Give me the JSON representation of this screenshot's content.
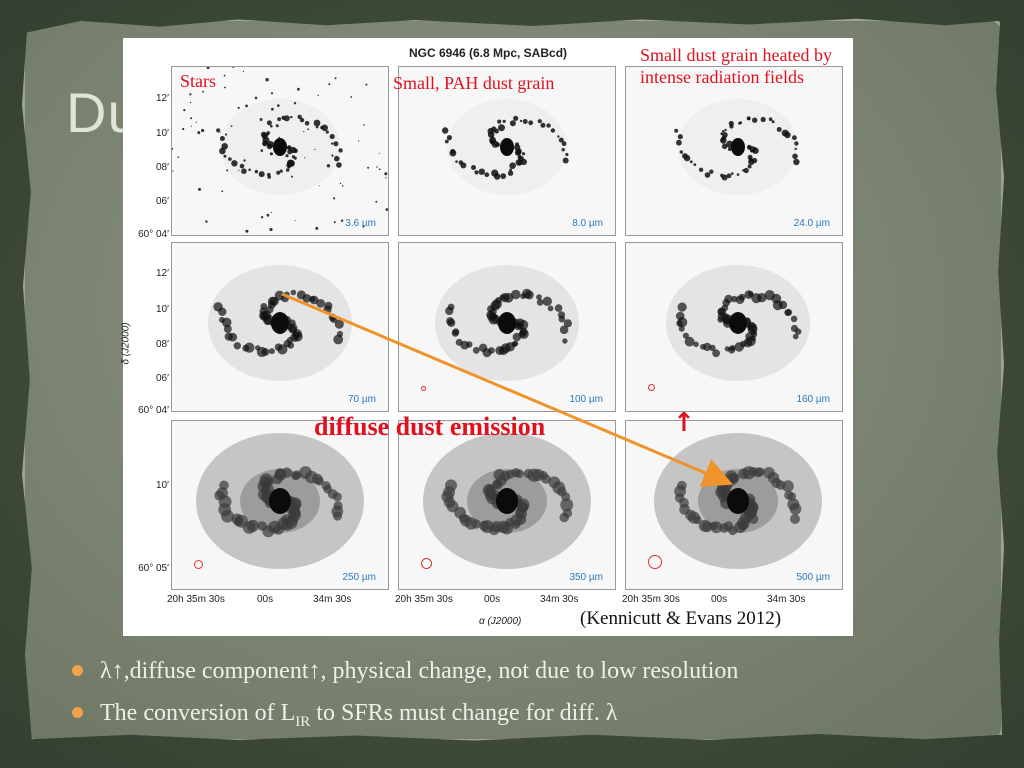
{
  "slide": {
    "title_visible_fragment": "Du",
    "colors": {
      "accent_bullet": "#f2a24b",
      "annotation_red": "#e0101e",
      "arrow_orange": "#f0932b",
      "wavelength_blue": "#2a78c0"
    }
  },
  "figure": {
    "title": "NGC 6946 (6.8 Mpc, SABcd)",
    "panels": [
      {
        "wavelength": "3.6 µm"
      },
      {
        "wavelength": "8.0 µm"
      },
      {
        "wavelength": "24.0 µm"
      },
      {
        "wavelength": "70 µm"
      },
      {
        "wavelength": "100 µm"
      },
      {
        "wavelength": "160 µm"
      },
      {
        "wavelength": "250 µm"
      },
      {
        "wavelength": "350 µm"
      },
      {
        "wavelength": "500 µm"
      }
    ],
    "y_axis_label": "δ (J2000)",
    "x_axis_label": "α (J2000)",
    "y_ticks_row1": [
      "12′",
      "10′",
      "08′",
      "06′",
      "60° 04′"
    ],
    "y_ticks_row2": [
      "12′",
      "10′",
      "08′",
      "06′",
      "60° 04′"
    ],
    "y_ticks_row3": [
      "10′",
      "60° 05′"
    ],
    "x_ticks": [
      "20h 35m 30s",
      "00s",
      "34m 30s"
    ]
  },
  "annotations": {
    "stars": "Stars",
    "pah": "Small, PAH dust grain",
    "small_dust_line1": "Small dust grain heated by",
    "small_dust_line2": "intense radiation fields",
    "diffuse": "diffuse dust emission",
    "up_arrow": "↑"
  },
  "citation": "(Kennicutt & Evans 2012)",
  "bullets": {
    "b1": "λ↑,diffuse component↑, physical change, not due to low resolution",
    "b2_pre": "The conversion of L",
    "b2_sub": "IR",
    "b2_post": " to SFRs must change for diff. λ"
  }
}
